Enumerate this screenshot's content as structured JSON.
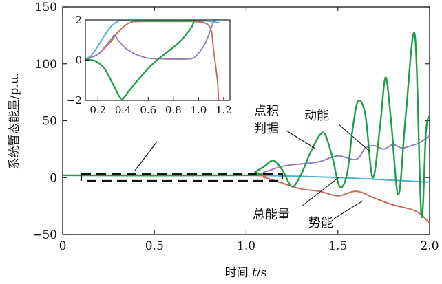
{
  "chart_data": [
    {
      "type": "line",
      "role": "main",
      "xlabel_text": "时间",
      "xlabel_var": "t",
      "xlabel_unit": "/s",
      "ylabel": "系统暂态能量/p.u.",
      "xlim": [
        0,
        2.0
      ],
      "ylim": [
        -50,
        150
      ],
      "xticks": [
        "0",
        "0.5",
        "1.0",
        "1.5",
        "2.0"
      ],
      "yticks": [
        "150",
        "100",
        "50",
        "0",
        "−50"
      ],
      "xtick_values": [
        0,
        0.5,
        1.0,
        1.5,
        2.0
      ],
      "ytick_values": [
        150,
        100,
        50,
        0,
        -50
      ],
      "grid": false,
      "colors": {
        "green": "#1e9e4a",
        "purple": "#9a7fb7",
        "red": "#c96b5b",
        "blue": "#4bb3cf"
      },
      "annotations": {
        "dot_product": [
          "点积",
          "判据"
        ],
        "kinetic": "动能",
        "total": "总能量",
        "potential": "势能"
      },
      "series": [
        {
          "key": "green",
          "x": [
            0,
            1.0,
            1.05,
            1.1,
            1.15,
            1.2,
            1.25,
            1.3,
            1.35,
            1.4,
            1.43,
            1.47,
            1.51,
            1.55,
            1.58,
            1.61,
            1.65,
            1.69,
            1.73,
            1.76,
            1.79,
            1.83,
            1.87,
            1.92,
            1.955,
            1.98,
            2.0
          ],
          "y": [
            2,
            2,
            5,
            10,
            15,
            6,
            -8,
            3,
            22,
            37,
            38,
            18,
            -8,
            3,
            42,
            67,
            55,
            0,
            45,
            88,
            50,
            -15,
            55,
            125,
            -33,
            40,
            55
          ]
        },
        {
          "key": "purple",
          "x": [
            0,
            1.0,
            1.1,
            1.2,
            1.3,
            1.4,
            1.5,
            1.6,
            1.65,
            1.7,
            1.75,
            1.8,
            1.85,
            1.9,
            1.95,
            2.0
          ],
          "y": [
            2,
            2,
            5,
            10,
            12,
            14,
            19,
            16,
            26,
            28,
            25,
            29,
            26,
            28,
            31,
            37
          ]
        },
        {
          "key": "red",
          "x": [
            0,
            1.0,
            1.1,
            1.2,
            1.3,
            1.4,
            1.5,
            1.6,
            1.7,
            1.8,
            1.9,
            1.95,
            2.0
          ],
          "y": [
            2,
            2,
            0,
            -5,
            -10,
            -12,
            -16,
            -12,
            -18,
            -24,
            -28,
            -32,
            -40
          ]
        },
        {
          "key": "blue",
          "x": [
            0,
            1.0,
            1.5,
            2.0
          ],
          "y": [
            2,
            2,
            0,
            -4
          ]
        }
      ]
    },
    {
      "type": "line",
      "role": "inset",
      "xlim": [
        0.1,
        1.25
      ],
      "ylim": [
        -2,
        2
      ],
      "xticks": [
        "0.2",
        "0.4",
        "0.6",
        "0.8",
        "1.0",
        "1.2"
      ],
      "yticks": [
        "2",
        "0",
        "−2"
      ],
      "xtick_values": [
        0.2,
        0.4,
        0.6,
        0.8,
        1.0,
        1.2
      ],
      "ytick_values": [
        2,
        0,
        -2
      ],
      "series": [
        {
          "key": "blue",
          "x": [
            0.1,
            0.15,
            0.2,
            0.25,
            0.3,
            0.35,
            0.4,
            0.5,
            0.7,
            0.9,
            1.0,
            1.05,
            1.1,
            1.13,
            1.17
          ],
          "y": [
            0.04,
            0.25,
            0.7,
            1.2,
            1.65,
            1.9,
            2.0,
            2.0,
            1.98,
            1.97,
            1.95,
            1.95,
            1.92,
            1.9,
            1.85
          ]
        },
        {
          "key": "red",
          "x": [
            0.1,
            0.2,
            0.3,
            0.36,
            0.45,
            0.55,
            0.8,
            0.95,
            1.05,
            1.1,
            1.12,
            1.15,
            1.16,
            1.17
          ],
          "y": [
            0.04,
            0.3,
            0.9,
            1.4,
            1.85,
            1.92,
            1.92,
            1.92,
            1.85,
            1.5,
            0.5,
            -1.0,
            -2.0,
            -2.5
          ]
        },
        {
          "key": "purple",
          "x": [
            0.1,
            0.2,
            0.3,
            0.33,
            0.36,
            0.42,
            0.5,
            0.6,
            0.7,
            0.8,
            0.9,
            0.97,
            1.05,
            1.1,
            1.13,
            1.16
          ],
          "y": [
            0.04,
            0.3,
            1.0,
            1.25,
            1.0,
            0.6,
            0.3,
            0.1,
            0.07,
            0.05,
            0.06,
            0.15,
            0.8,
            1.6,
            2.1,
            2.6
          ]
        },
        {
          "key": "green",
          "x": [
            0.1,
            0.18,
            0.25,
            0.32,
            0.37,
            0.4,
            0.45,
            0.55,
            0.65,
            0.75,
            0.85,
            0.91,
            0.95,
            0.97,
            0.985
          ],
          "y": [
            0.04,
            -0.05,
            -0.4,
            -1.2,
            -1.8,
            -1.9,
            -1.5,
            -0.75,
            -0.1,
            0.4,
            0.9,
            1.35,
            1.7,
            2.05,
            2.3
          ]
        }
      ]
    }
  ]
}
